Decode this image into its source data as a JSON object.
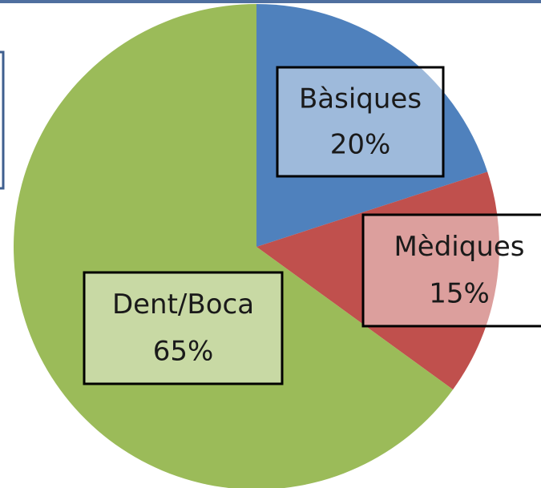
{
  "chart_data": {
    "type": "pie",
    "categories": [
      "Bàsiques",
      "Mèdiques",
      "Dent/Boca"
    ],
    "values": [
      20,
      15,
      65
    ],
    "value_labels": [
      "20%",
      "15%",
      "65%"
    ],
    "colors": [
      "#4f81bd",
      "#c0504d",
      "#9bbb59"
    ]
  }
}
